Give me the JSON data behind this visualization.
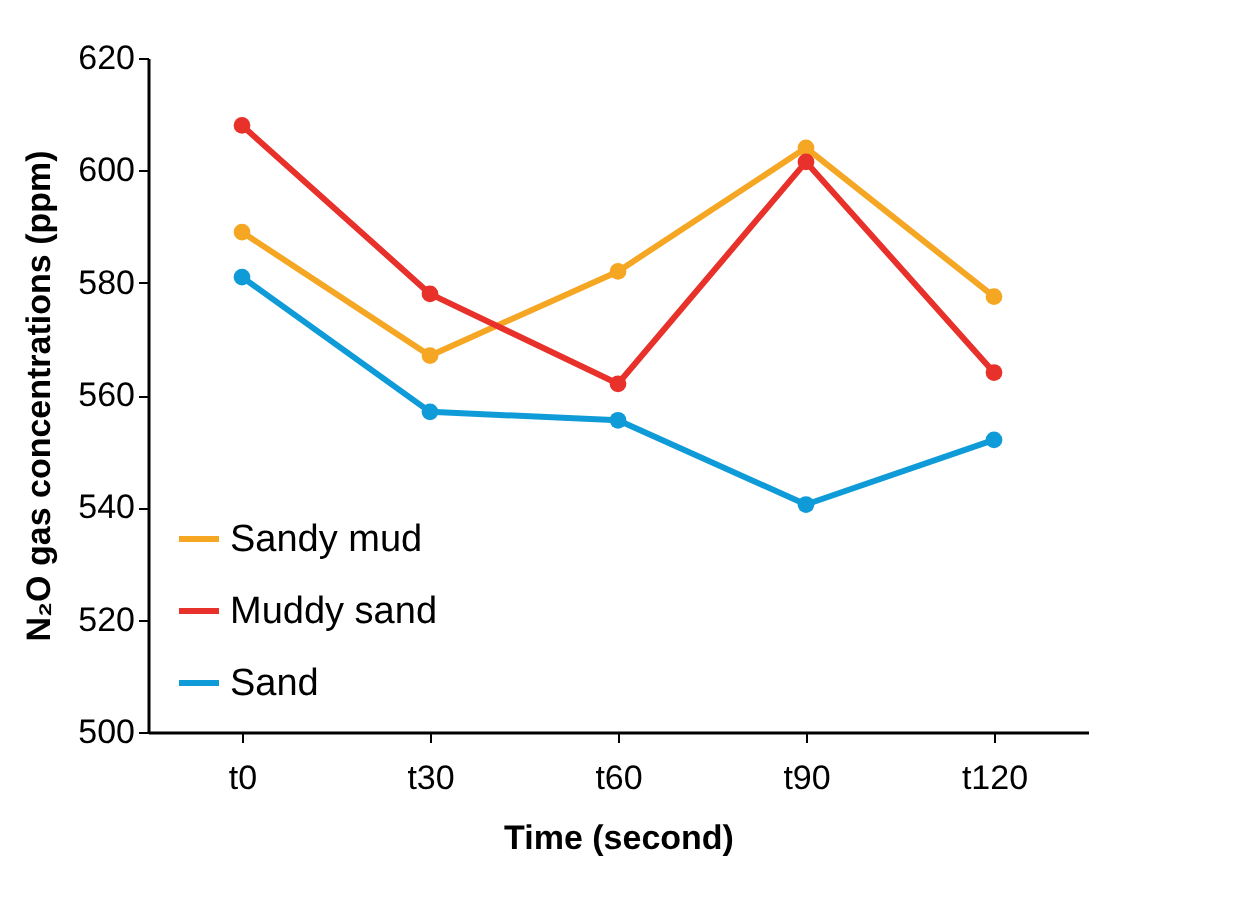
{
  "chart_data": {
    "type": "line",
    "xlabel": "Time (second)",
    "ylabel": "N₂O gas concentrations (ppm)",
    "categories": [
      "t0",
      "t30",
      "t60",
      "t90",
      "t120"
    ],
    "series": [
      {
        "name": "Sandy mud",
        "color": "#f5a623",
        "values": [
          589,
          567,
          582,
          604,
          577.5
        ]
      },
      {
        "name": "Muddy sand",
        "color": "#e8312a",
        "values": [
          608,
          578,
          562,
          601.5,
          564
        ]
      },
      {
        "name": "Sand",
        "color": "#0f9bd7",
        "values": [
          581,
          557,
          555.5,
          540.5,
          552
        ]
      }
    ],
    "ylim": [
      500,
      620
    ],
    "yticks": [
      500,
      520,
      540,
      560,
      580,
      600,
      620
    ],
    "grid": false,
    "legend": "bottom left",
    "marker": "circle",
    "line_style": "solid"
  }
}
